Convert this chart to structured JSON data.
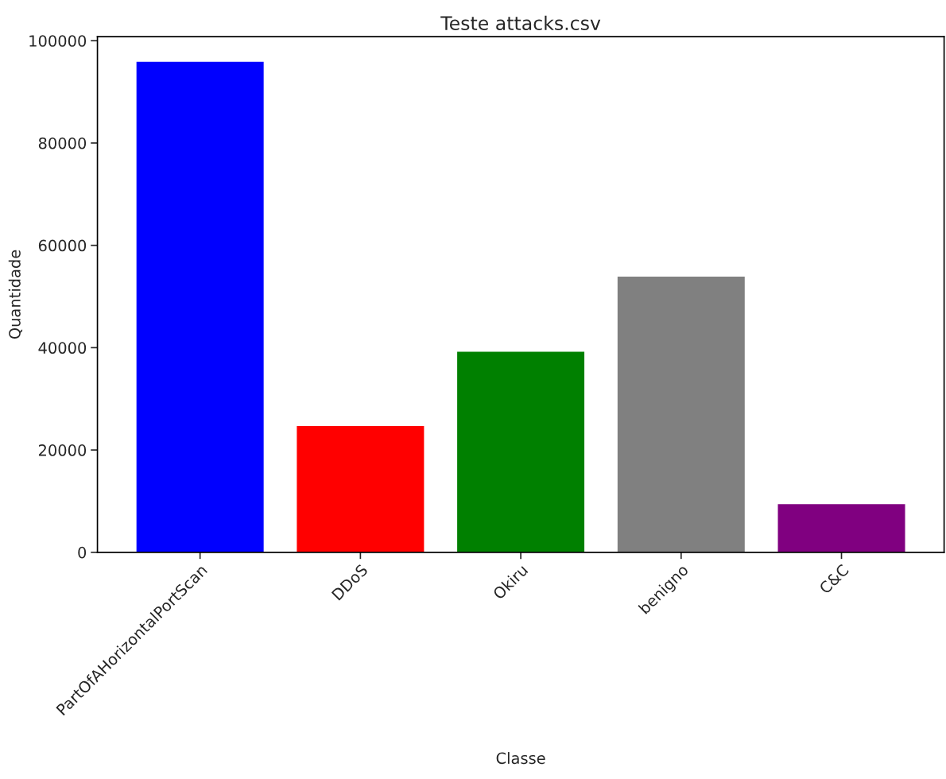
{
  "chart_data": {
    "type": "bar",
    "title": "Teste attacks.csv",
    "xlabel": "Classe",
    "ylabel": "Quantidade",
    "categories": [
      "PartOfAHorizontalPortScan",
      "DDoS",
      "Okiru",
      "benigno",
      "C&C"
    ],
    "values": [
      96000,
      24800,
      39300,
      54000,
      9500
    ],
    "colors": [
      "#0000ff",
      "#ff0000",
      "#008000",
      "#808080",
      "#800080"
    ],
    "ylim": [
      0,
      100800
    ],
    "yticks": [
      0,
      20000,
      40000,
      60000,
      80000,
      100000
    ],
    "grid": false
  }
}
